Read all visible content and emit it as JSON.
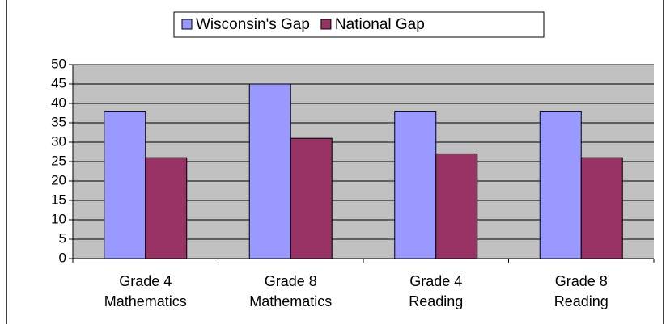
{
  "chart_data": {
    "type": "bar",
    "categories": [
      [
        "Grade 4",
        "Mathematics"
      ],
      [
        "Grade 8",
        "Mathematics"
      ],
      [
        "Grade 4",
        "Reading"
      ],
      [
        "Grade 8",
        "Reading"
      ]
    ],
    "series": [
      {
        "name": "Wisconsin's Gap",
        "color": "#9999ff",
        "values": [
          38,
          45,
          38,
          38
        ]
      },
      {
        "name": "National Gap",
        "color": "#993366",
        "values": [
          26,
          31,
          27,
          26
        ]
      }
    ],
    "ylim": [
      0,
      50
    ],
    "yticks": [
      0,
      5,
      10,
      15,
      20,
      25,
      30,
      35,
      40,
      45,
      50
    ],
    "grid": true,
    "legend": "top",
    "plot_background": "#c0c0c0"
  }
}
